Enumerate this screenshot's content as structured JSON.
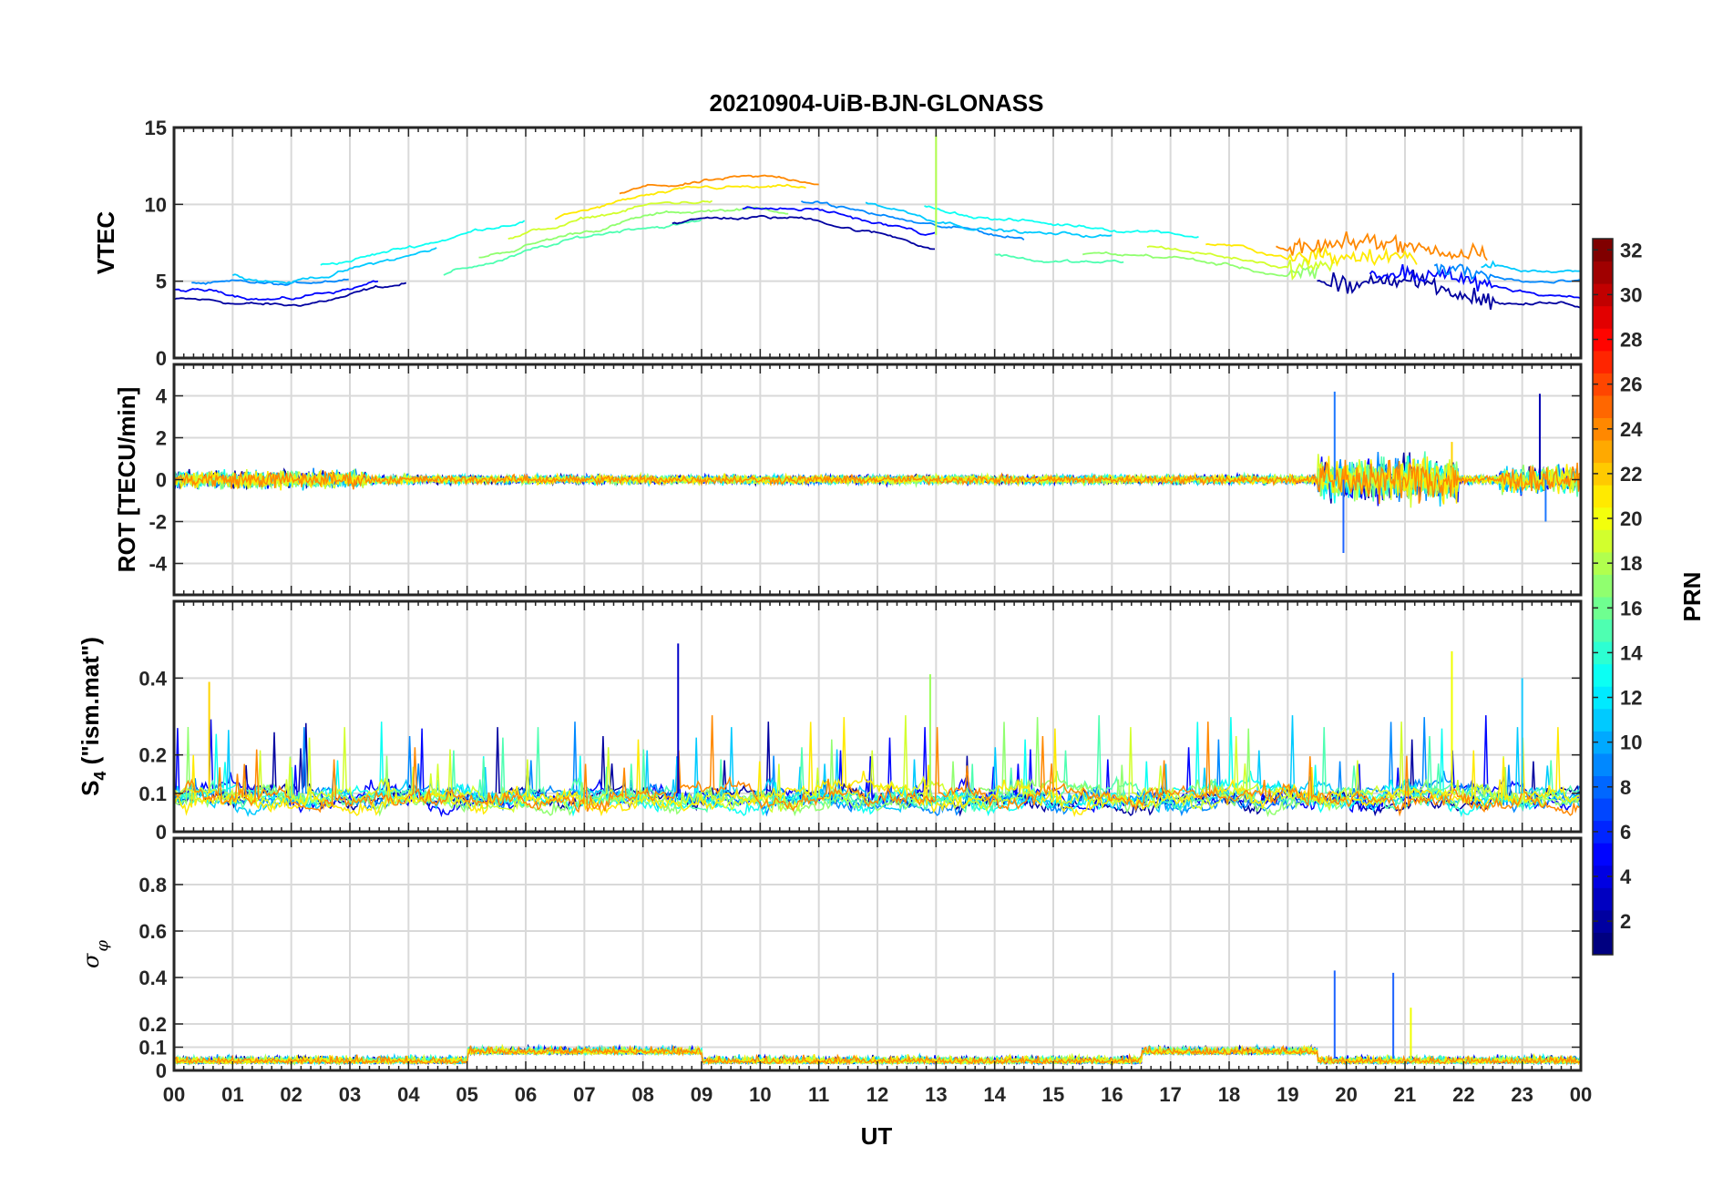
{
  "chart_data": {
    "type": "line",
    "title": "20210904-UiB-BJN-GLONASS",
    "xlabel": "UT",
    "xticks": [
      "00",
      "01",
      "02",
      "03",
      "04",
      "05",
      "06",
      "07",
      "08",
      "09",
      "10",
      "11",
      "12",
      "13",
      "14",
      "15",
      "16",
      "17",
      "18",
      "19",
      "20",
      "21",
      "22",
      "23",
      "00"
    ],
    "xlim": [
      0,
      24
    ],
    "grid": true,
    "colorbar": {
      "label": "PRN",
      "range": [
        1,
        32
      ],
      "ticks": [
        "2",
        "4",
        "6",
        "8",
        "10",
        "12",
        "14",
        "16",
        "18",
        "20",
        "22",
        "24",
        "26",
        "28",
        "30",
        "32"
      ],
      "colormap": "jet"
    },
    "panels": [
      {
        "ylabel": "VTEC",
        "ylim": [
          0,
          15
        ],
        "yticks": [
          "0",
          "5",
          "10",
          "15"
        ],
        "series_summary": "Per-satellite VTEC arcs; ~4-6 TECU at 00-04 UT, rising to ~10-11 TECU around 09-11 UT, declining to ~5-7 TECU after 19 UT; one spike to ~14.5 at 13 UT",
        "profile": [
          [
            0,
            5
          ],
          [
            2,
            4.5
          ],
          [
            4,
            6
          ],
          [
            6,
            8
          ],
          [
            8,
            9.8
          ],
          [
            9.5,
            10.3
          ],
          [
            11,
            10.2
          ],
          [
            13,
            8.5
          ],
          [
            15,
            7.5
          ],
          [
            17,
            7.2
          ],
          [
            19,
            6
          ],
          [
            21,
            6.2
          ],
          [
            23,
            5
          ],
          [
            24,
            4.8
          ]
        ]
      },
      {
        "ylabel": "ROT [TECU/min]",
        "ylim": [
          -5.5,
          5.5
        ],
        "yticks": [
          "-4",
          "-2",
          "0",
          "2",
          "4"
        ],
        "series_summary": "Rate of TEC near 0 with small fluctuations; bursts between 19.5-21.8 UT with peaks ~4.2 and ~-3.5; spike ~4 near 23.3 UT"
      },
      {
        "ylabel": "S4 (\"ism.mat\")",
        "ylim": [
          0,
          0.6
        ],
        "yticks": [
          "0",
          "0.1",
          "0.2",
          "0.4"
        ],
        "series_summary": "Amplitude scintillation mostly 0.05-0.15 with peaks up to ~0.49 at 8.6 UT and ~0.47 at 21.8 UT"
      },
      {
        "ylabel": "σφ",
        "ylim": [
          0,
          1
        ],
        "yticks": [
          "0",
          "0.1",
          "0.2",
          "0.4",
          "0.6",
          "0.8"
        ],
        "series_summary": "Phase scintillation mostly below 0.15; spikes ~0.43 near 19.8 UT and ~0.42 near 20.8 UT"
      }
    ]
  }
}
